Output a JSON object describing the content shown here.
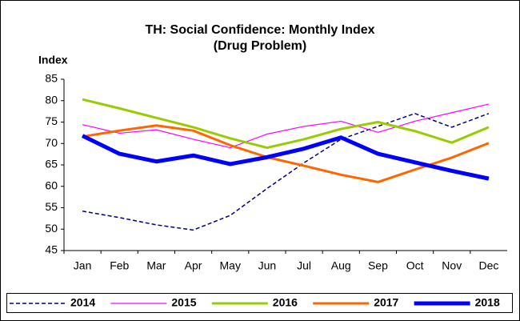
{
  "chart_data": {
    "type": "line",
    "title": "TH: Social Confidence: Monthly Index",
    "subtitle": "(Drug Problem)",
    "y_label": "Index",
    "categories": [
      "Jan",
      "Feb",
      "Mar",
      "Apr",
      "May",
      "Jun",
      "Jul",
      "Aug",
      "Sep",
      "Oct",
      "Nov",
      "Dec"
    ],
    "ylim": [
      45,
      85
    ],
    "yticks": [
      45,
      50,
      55,
      60,
      65,
      70,
      75,
      80,
      85
    ],
    "grid": false,
    "legend": "bottom",
    "series": [
      {
        "name": "2014",
        "color": "#000080",
        "line_style": "dashed",
        "line_width": 1.5,
        "values": [
          54.2,
          52.7,
          51,
          49.8,
          53.2,
          59.5,
          65.5,
          71,
          74,
          77,
          73.8,
          77
        ]
      },
      {
        "name": "2015",
        "color": "#ff00ff",
        "line_style": "solid",
        "line_width": 1.2,
        "values": [
          74.4,
          72.4,
          73.2,
          71,
          69,
          72.2,
          74,
          75.2,
          72.6,
          75.2,
          77.2,
          79.2
        ]
      },
      {
        "name": "2016",
        "color": "#99cc00",
        "line_style": "solid",
        "line_width": 3,
        "values": [
          80.3,
          78.2,
          76,
          73.8,
          71.2,
          69,
          71,
          73.4,
          75,
          72.9,
          70.2,
          73.8
        ]
      },
      {
        "name": "2017",
        "color": "#ff6600",
        "line_style": "solid",
        "line_width": 3,
        "values": [
          71.6,
          73,
          74.2,
          73,
          69.6,
          66.8,
          64.8,
          62.7,
          61,
          63.9,
          66.7,
          70.1
        ]
      },
      {
        "name": "2018",
        "color": "#0000ff",
        "line_style": "solid",
        "line_width": 5,
        "values": [
          71.8,
          67.6,
          65.8,
          67.2,
          65.2,
          66.8,
          68.8,
          71.4,
          67.6,
          65.6,
          63.6,
          61.8
        ]
      }
    ]
  }
}
